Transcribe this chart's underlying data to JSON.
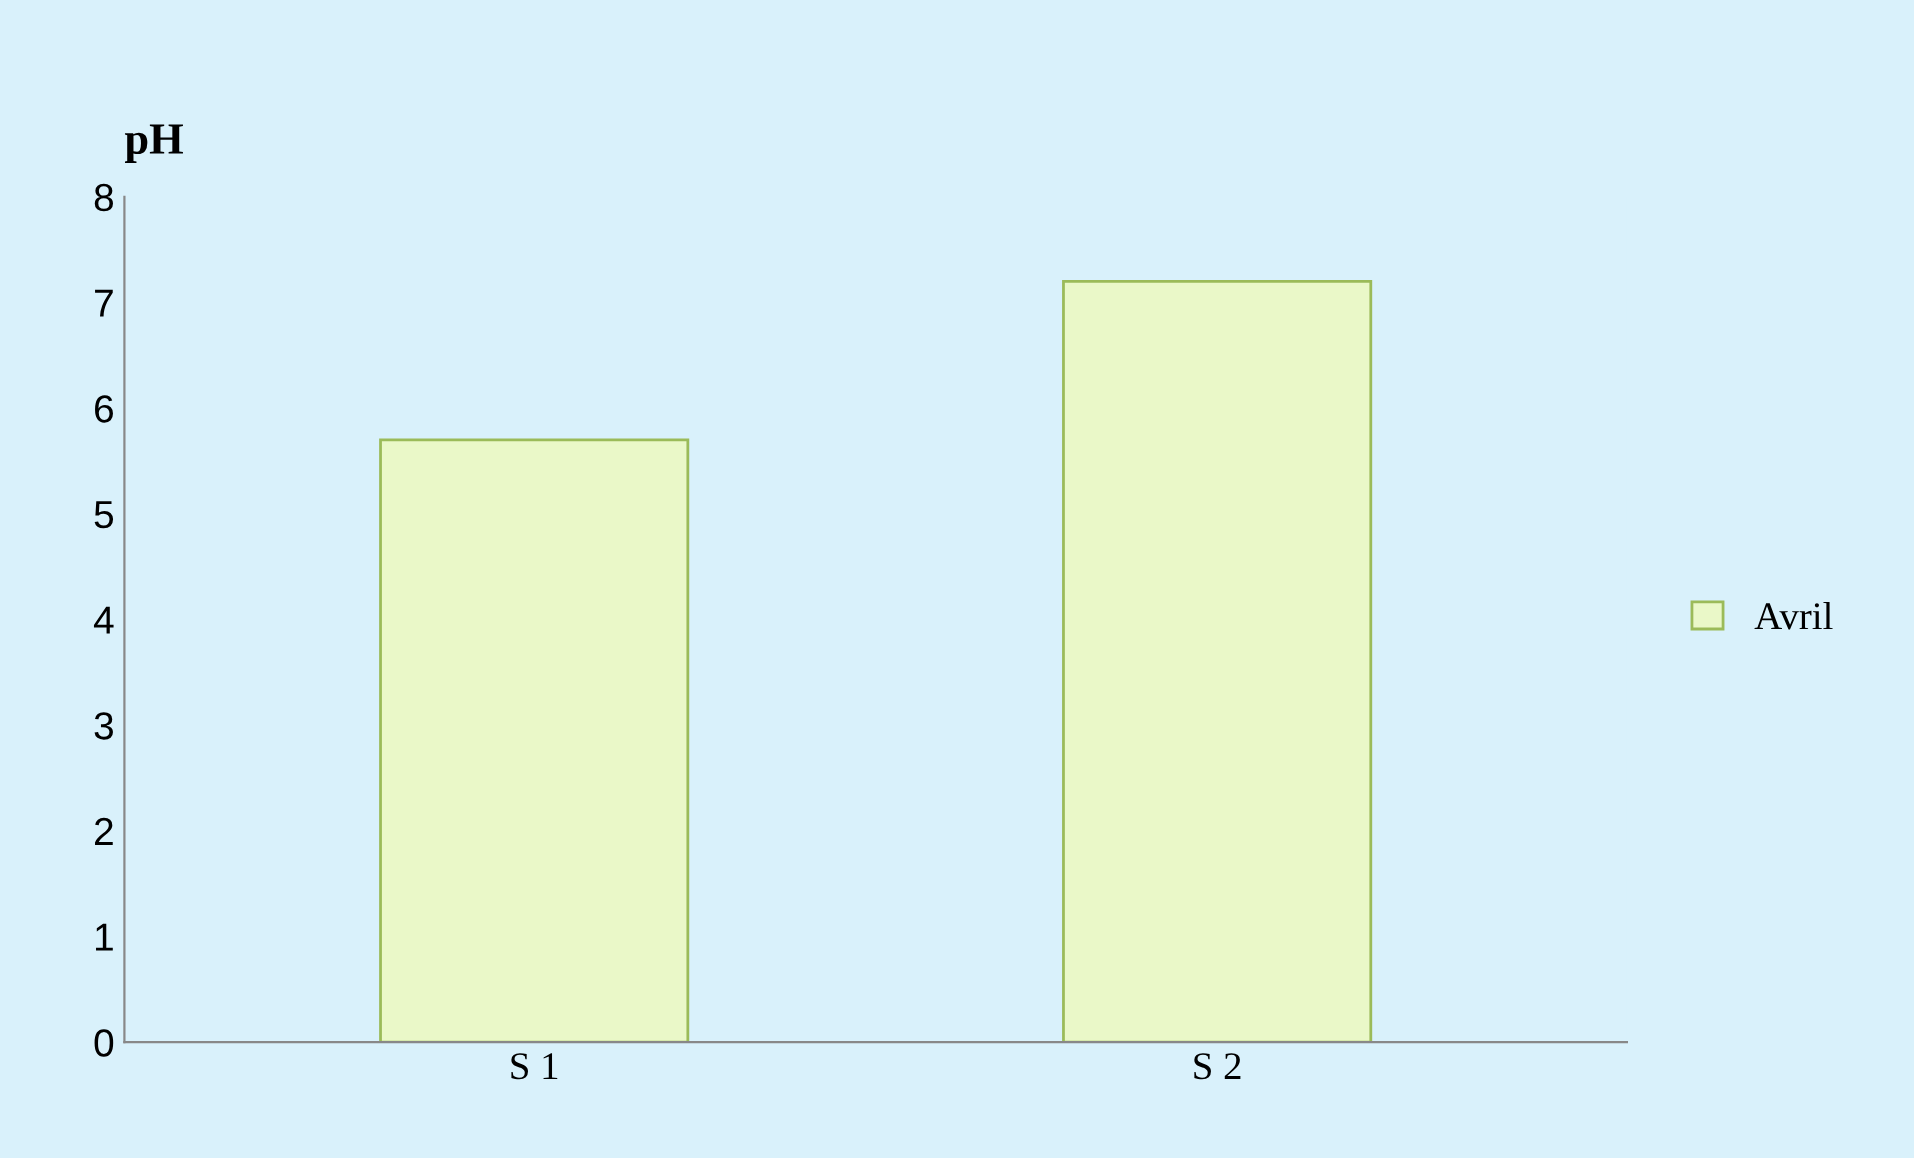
{
  "chart_data": {
    "type": "bar",
    "ylabel": "pH",
    "categories": [
      "S 1",
      "S 2"
    ],
    "series": [
      {
        "name": "Avril",
        "color": "#eaf8c8",
        "values": [
          5.7,
          7.2
        ]
      }
    ],
    "ylim": [
      0,
      8
    ],
    "yticks": [
      0,
      1,
      2,
      3,
      4,
      5,
      6,
      7,
      8
    ],
    "grid": false,
    "legend": "right"
  }
}
